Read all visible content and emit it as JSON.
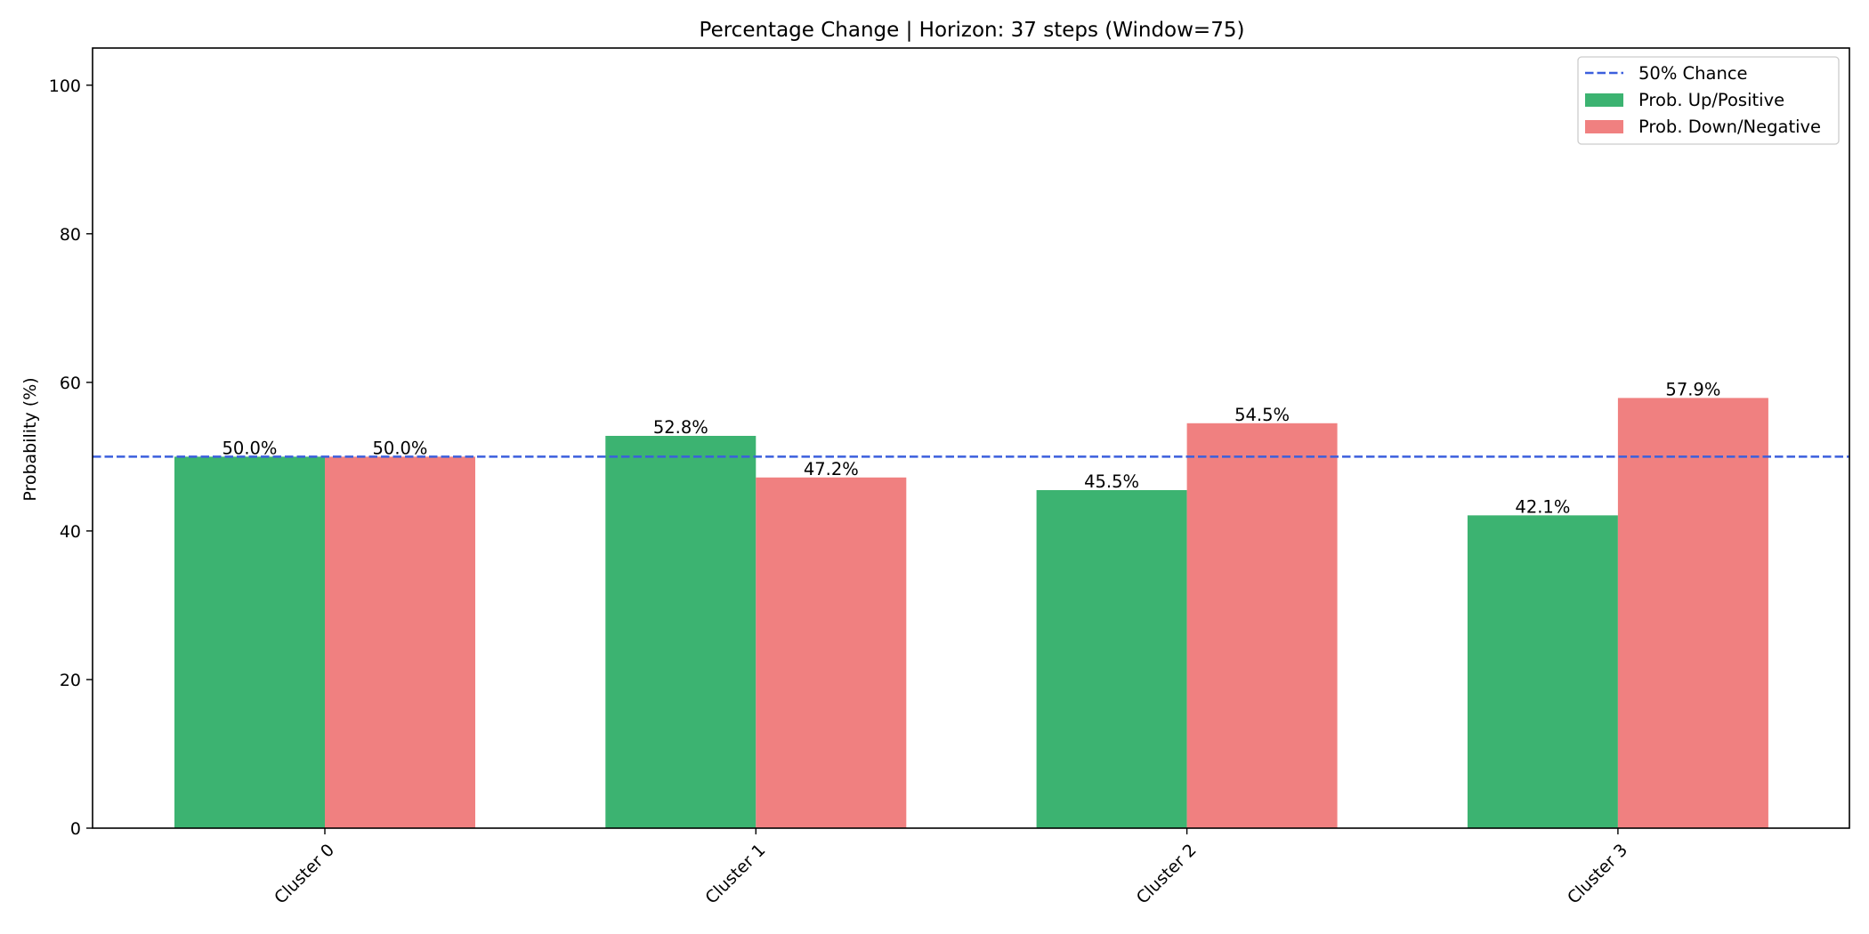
{
  "chart_data": {
    "type": "bar",
    "title": "Percentage Change | Horizon: 37 steps (Window=75)",
    "xlabel": "",
    "ylabel": "Probability (%)",
    "ylim": [
      0,
      105
    ],
    "yticks": [
      0,
      20,
      40,
      60,
      80,
      100
    ],
    "categories": [
      "Cluster 0",
      "Cluster 1",
      "Cluster 2",
      "Cluster 3"
    ],
    "series": [
      {
        "name": "Prob. Up/Positive",
        "color": "#3cb371",
        "values": [
          50.0,
          52.8,
          45.5,
          42.1
        ],
        "labels": [
          "50.0%",
          "52.8%",
          "45.5%",
          "42.1%"
        ]
      },
      {
        "name": "Prob. Down/Negative",
        "color": "#f08080",
        "values": [
          50.0,
          47.2,
          54.5,
          57.9
        ],
        "labels": [
          "50.0%",
          "47.2%",
          "54.5%",
          "57.9%"
        ]
      }
    ],
    "reference_line": {
      "name": "50% Chance",
      "value": 50,
      "color": "#3b5fdd",
      "style": "dashed"
    },
    "legend_position": "top-right",
    "grid": false
  }
}
